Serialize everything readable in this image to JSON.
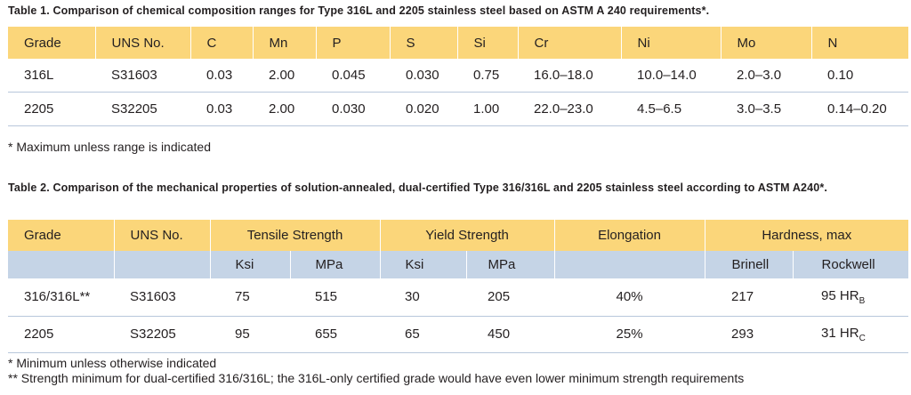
{
  "table1": {
    "caption": "Table 1.  Comparison of chemical composition ranges for Type 316L and 2205 stainless steel based on ASTM A 240 requirements*.",
    "headers": [
      "Grade",
      "UNS No.",
      "C",
      "Mn",
      "P",
      "S",
      "Si",
      "Cr",
      "Ni",
      "Mo",
      "N"
    ],
    "rows": [
      [
        "316L",
        "S31603",
        "0.03",
        "2.00",
        "0.045",
        "0.030",
        "0.75",
        "16.0–18.0",
        "10.0–14.0",
        "2.0–3.0",
        "0.10"
      ],
      [
        "2205",
        "S32205",
        "0.03",
        "2.00",
        "0.030",
        "0.020",
        "1.00",
        "22.0–23.0",
        "4.5–6.5",
        "3.0–3.5",
        "0.14–0.20"
      ]
    ],
    "footnote": "*  Maximum unless range is indicated"
  },
  "table2": {
    "caption": "Table 2.  Comparison of the mechanical properties of solution-annealed, dual-certified Type 316/316L and 2205 stainless steel according to ASTM A240*.",
    "headers": [
      "Grade",
      "UNS No.",
      "Tensile Strength",
      "Yield Strength",
      "Elongation",
      "Hardness, max"
    ],
    "subheaders": [
      "",
      "",
      "Ksi",
      "MPa",
      "Ksi",
      "MPa",
      "",
      "Brinell",
      "Rockwell"
    ],
    "rows": [
      {
        "grade": "316/316L**",
        "uns": "S31603",
        "ts_ksi": "75",
        "ts_mpa": "515",
        "ys_ksi": "30",
        "ys_mpa": "205",
        "elong": "40%",
        "brinell": "217",
        "rockwell": "95 HR",
        "rockwell_sub": "B"
      },
      {
        "grade": "2205",
        "uns": "S32205",
        "ts_ksi": "95",
        "ts_mpa": "655",
        "ys_ksi": "65",
        "ys_mpa": "450",
        "elong": "25%",
        "brinell": "293",
        "rockwell": "31 HR",
        "rockwell_sub": "C"
      }
    ],
    "footnotes": [
      "*  Minimum unless otherwise indicated",
      "** Strength minimum for dual-certified 316/316L; the 316L-only certified grade would have even lower minimum strength requirements"
    ]
  },
  "colors": {
    "header": "#fbd67a",
    "subheader": "#c5d4e6",
    "rule": "#b8c7db",
    "text": "#231f20"
  }
}
